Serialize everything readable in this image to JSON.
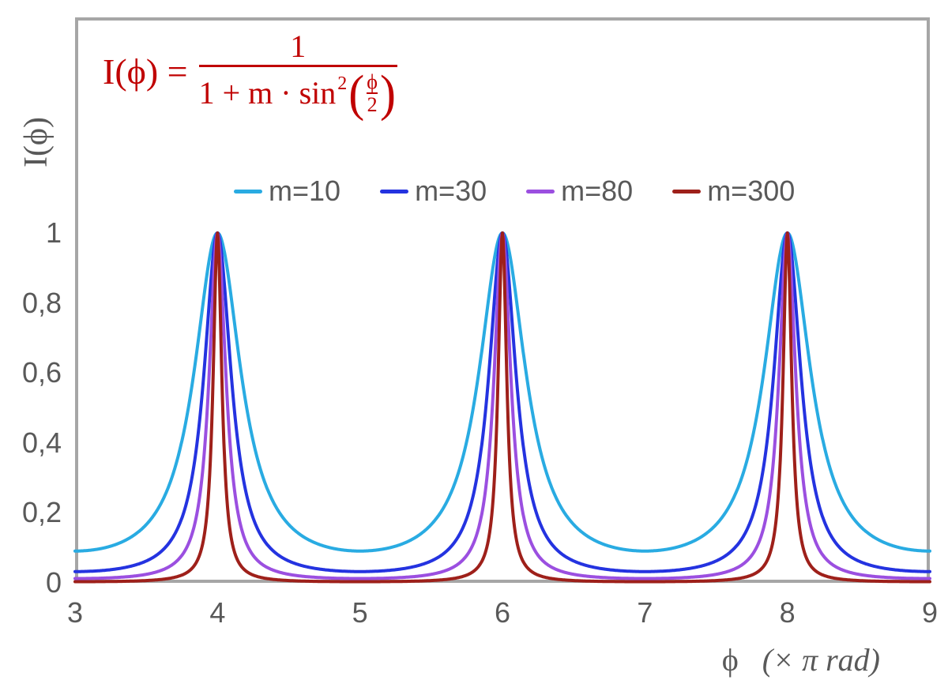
{
  "chart_data": {
    "type": "line",
    "title_formula_text": "I(ϕ) = 1 / (1 + m·sin²(ϕ/2))",
    "formula": {
      "lhs": "I(ϕ) =",
      "numerator": "1",
      "den_text": "1 + m · sin",
      "den_sup": "2",
      "paren_open": "(",
      "paren_close": ")",
      "inner_num": "ϕ",
      "inner_den": "2",
      "color": "#C00000"
    },
    "function": "I(u) = 1 / (1 + m * sin(u*PI/2)^2), u = phase in units of pi rad",
    "sampling_step": 0.005,
    "x": {
      "label_phi": "ϕ",
      "label_units": "(× π rad)",
      "min": 3,
      "max": 9,
      "ticks": [
        3,
        4,
        5,
        6,
        7,
        8,
        9
      ],
      "tick_labels": [
        "3",
        "4",
        "5",
        "6",
        "7",
        "8",
        "9"
      ]
    },
    "y": {
      "label": "I(ϕ)",
      "min": 0,
      "max": 1,
      "ticks": [
        {
          "value": 0,
          "label": "0"
        },
        {
          "value": 0.2,
          "label": "0,2"
        },
        {
          "value": 0.4,
          "label": "0,4"
        },
        {
          "value": 0.6,
          "label": "0,6"
        },
        {
          "value": 0.8,
          "label": "0,8"
        },
        {
          "value": 1,
          "label": "1"
        }
      ]
    },
    "series": [
      {
        "name": "m=10",
        "m": 10,
        "color": "#29ABE2"
      },
      {
        "name": "m=30",
        "m": 30,
        "color": "#2433E0"
      },
      {
        "name": "m=80",
        "m": 80,
        "color": "#9B4FE0"
      },
      {
        "name": "m=300",
        "m": 300,
        "color": "#9E201A"
      }
    ],
    "peaks_at_x": [
      4,
      6,
      8
    ],
    "peak_value": 1,
    "grid": false,
    "legend_position": "top-center-inside"
  },
  "colors": {
    "frame": "#A6A6A6",
    "text": "#595959",
    "formula": "#C00000",
    "background": "#ffffff"
  }
}
